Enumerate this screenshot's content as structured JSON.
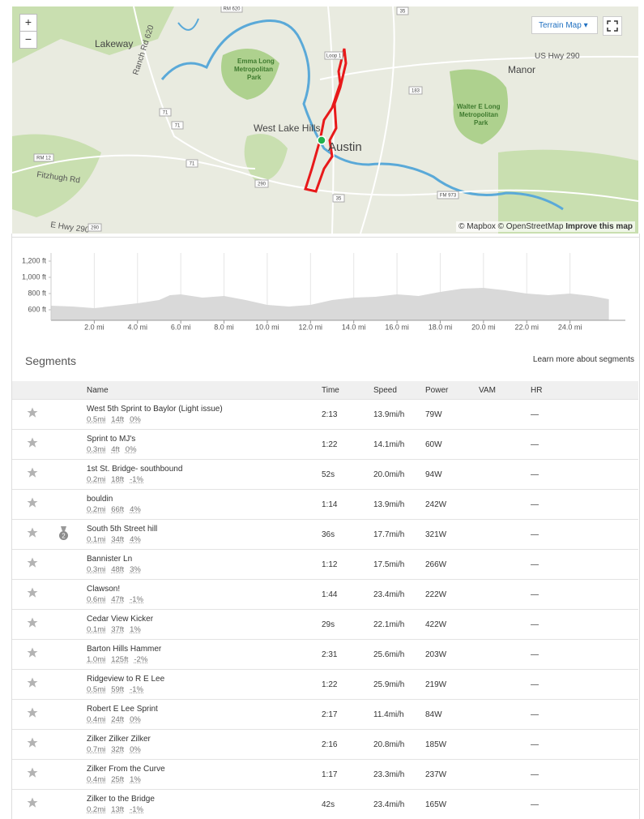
{
  "map": {
    "zoom_in": "+",
    "zoom_out": "−",
    "style_button": "Terrain Map",
    "labels": {
      "lakeway": "Lakeway",
      "emma_long": [
        "Emma Long",
        "Metropolitan",
        "Park"
      ],
      "west_lake_hills": "West Lake Hills",
      "austin": "Austin",
      "manor": "Manor",
      "walter_long": [
        "Walter E Long",
        "Metropolitan",
        "Park"
      ],
      "us_hwy_290": "US Hwy 290",
      "ranch_rd_620": "Ranch Rd 620",
      "fitzhugh_rd": "Fitzhugh Rd",
      "e_hwy_290": "E Hwy 290",
      "rm_620": "RM 620",
      "rm_12": "RM 12",
      "fm_973": "FM 973",
      "loop_1": "Loop 1",
      "shield_71a": "71",
      "shield_71b": "71",
      "shield_71c": "71",
      "shield_290": "290",
      "shield_290b": "290",
      "shield_35": "35",
      "shield_35b": "35",
      "shield_183": "183"
    },
    "attribution": "© Mapbox © OpenStreetMap",
    "improve": "Improve this map"
  },
  "elevation": {
    "type": "area",
    "x": [
      0,
      1,
      2,
      3,
      4,
      5,
      5.5,
      6,
      7,
      8,
      9,
      10,
      11,
      12,
      13,
      14,
      15,
      16,
      17,
      18,
      19,
      20,
      21,
      22,
      23,
      24,
      25,
      25.8
    ],
    "values": [
      650,
      640,
      620,
      650,
      680,
      720,
      780,
      790,
      750,
      770,
      720,
      660,
      640,
      660,
      720,
      750,
      760,
      790,
      770,
      820,
      860,
      870,
      840,
      800,
      780,
      800,
      770,
      730
    ],
    "color": "#d9d9d9",
    "xlim": [
      0,
      26
    ],
    "ylim": [
      470,
      1300
    ],
    "xticks": [
      {
        "value": 2,
        "label": "2.0 mi"
      },
      {
        "value": 4,
        "label": "4.0 mi"
      },
      {
        "value": 6,
        "label": "6.0 mi"
      },
      {
        "value": 8,
        "label": "8.0 mi"
      },
      {
        "value": 10,
        "label": "10.0 mi"
      },
      {
        "value": 12,
        "label": "12.0 mi"
      },
      {
        "value": 14,
        "label": "14.0 mi"
      },
      {
        "value": 16,
        "label": "16.0 mi"
      },
      {
        "value": 18,
        "label": "18.0 mi"
      },
      {
        "value": 20,
        "label": "20.0 mi"
      },
      {
        "value": 22,
        "label": "22.0 mi"
      },
      {
        "value": 24,
        "label": "24.0 mi"
      }
    ],
    "yticks": [
      {
        "value": 1200,
        "label": "1,200 ft"
      },
      {
        "value": 1000,
        "label": "1,000 ft"
      },
      {
        "value": 800,
        "label": "800 ft"
      },
      {
        "value": 600,
        "label": "600 ft"
      }
    ]
  },
  "segments": {
    "title": "Segments",
    "learn_more": "Learn more about segments",
    "columns": [
      "Name",
      "Time",
      "Speed",
      "Power",
      "VAM",
      "HR"
    ],
    "rows": [
      {
        "name": "West 5th Sprint to Baylor (Light issue)",
        "distance": "0.5mi",
        "elevation": "14ft",
        "grade": "0%",
        "time": "2:13",
        "speed": "13.9mi/h",
        "power": "79W",
        "hr": "—"
      },
      {
        "name": "Sprint to MJ's",
        "distance": "0.3mi",
        "elevation": "4ft",
        "grade": "0%",
        "time": "1:22",
        "speed": "14.1mi/h",
        "power": "60W",
        "hr": "—"
      },
      {
        "name": "1st St. Bridge- southbound",
        "distance": "0.2mi",
        "elevation": "18ft",
        "grade": "-1%",
        "time": "52s",
        "speed": "20.0mi/h",
        "power": "94W",
        "hr": "—"
      },
      {
        "name": "bouldin",
        "distance": "0.2mi",
        "elevation": "66ft",
        "grade": "4%",
        "time": "1:14",
        "speed": "13.9mi/h",
        "power": "242W",
        "hr": "—"
      },
      {
        "name": "South 5th Street hill",
        "medal": "2",
        "distance": "0.1mi",
        "elevation": "34ft",
        "grade": "4%",
        "time": "36s",
        "speed": "17.7mi/h",
        "power": "321W",
        "hr": "—"
      },
      {
        "name": "Bannister Ln",
        "distance": "0.3mi",
        "elevation": "48ft",
        "grade": "3%",
        "time": "1:12",
        "speed": "17.5mi/h",
        "power": "266W",
        "hr": "—"
      },
      {
        "name": "Clawson!",
        "distance": "0.6mi",
        "elevation": "47ft",
        "grade": "-1%",
        "time": "1:44",
        "speed": "23.4mi/h",
        "power": "222W",
        "hr": "—"
      },
      {
        "name": "Cedar View Kicker",
        "distance": "0.1mi",
        "elevation": "37ft",
        "grade": "1%",
        "time": "29s",
        "speed": "22.1mi/h",
        "power": "422W",
        "hr": "—"
      },
      {
        "name": "Barton Hills Hammer",
        "distance": "1.0mi",
        "elevation": "125ft",
        "grade": "-2%",
        "time": "2:31",
        "speed": "25.6mi/h",
        "power": "203W",
        "hr": "—"
      },
      {
        "name": "Ridgeview to R E Lee",
        "distance": "0.5mi",
        "elevation": "59ft",
        "grade": "-1%",
        "time": "1:22",
        "speed": "25.9mi/h",
        "power": "219W",
        "hr": "—"
      },
      {
        "name": "Robert E Lee Sprint",
        "distance": "0.4mi",
        "elevation": "24ft",
        "grade": "0%",
        "time": "2:17",
        "speed": "11.4mi/h",
        "power": "84W",
        "hr": "—"
      },
      {
        "name": "Zilker Zilker Zilker",
        "distance": "0.7mi",
        "elevation": "32ft",
        "grade": "0%",
        "time": "2:16",
        "speed": "20.8mi/h",
        "power": "185W",
        "hr": "—"
      },
      {
        "name": "Zilker From the Curve",
        "distance": "0.4mi",
        "elevation": "25ft",
        "grade": "1%",
        "time": "1:17",
        "speed": "23.3mi/h",
        "power": "237W",
        "hr": "—"
      },
      {
        "name": "Zilker to the Bridge",
        "distance": "0.2mi",
        "elevation": "13ft",
        "grade": "-1%",
        "time": "42s",
        "speed": "23.4mi/h",
        "power": "165W",
        "hr": "—"
      }
    ]
  }
}
